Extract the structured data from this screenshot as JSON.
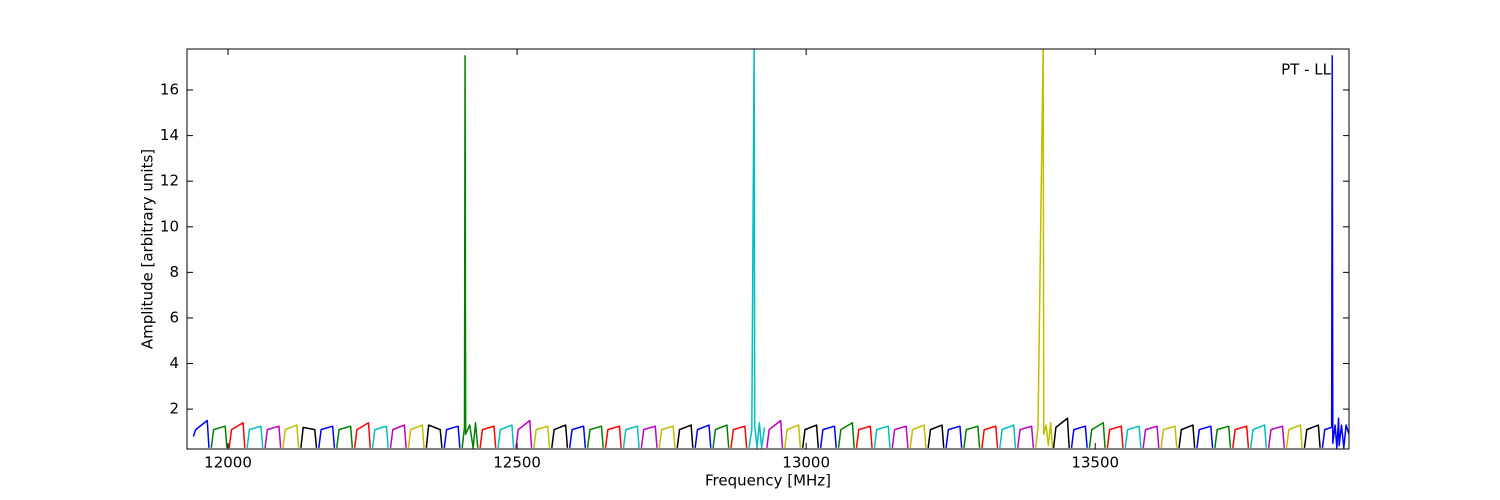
{
  "chart_data": {
    "type": "line",
    "xlabel": "Frequency [MHz]",
    "ylabel": "Amplitude [arbitrary units]",
    "annotation": "PT - LL",
    "xlim": [
      11929,
      13939
    ],
    "ylim": [
      0.25,
      17.8
    ],
    "xticks": [
      12000,
      12500,
      13000,
      13500
    ],
    "yticks": [
      2,
      4,
      6,
      8,
      10,
      12,
      14,
      16
    ],
    "series": [
      {
        "color": "#0000ff",
        "x": [
          11940,
          11944,
          11964,
          11967,
          null,
          12157,
          12161,
          12181,
          12184,
          null,
          12374,
          12378,
          12398,
          12401,
          null,
          12591,
          12595,
          12615,
          12618,
          null,
          12808,
          12812,
          12832,
          12835,
          null,
          13025,
          13029,
          13049,
          13052,
          null,
          13242,
          13246,
          13266,
          13269,
          null,
          13459,
          13463,
          13483,
          13486,
          null,
          13676,
          13680,
          13700,
          13703,
          null,
          13893,
          13897,
          13909,
          13910,
          13911,
          13915,
          13918,
          13921,
          13922,
          13926,
          13930,
          13934,
          13939
        ],
        "values": [
          0.8,
          1.1,
          1.5,
          0.3,
          null,
          0.3,
          1.1,
          1.25,
          0.3,
          null,
          0.3,
          1.1,
          1.25,
          0.3,
          null,
          0.3,
          1.1,
          1.25,
          0.3,
          null,
          0.3,
          1.1,
          1.3,
          0.3,
          null,
          0.3,
          1.1,
          1.25,
          0.3,
          null,
          0.3,
          1.1,
          1.25,
          0.3,
          null,
          0.3,
          1.1,
          1.25,
          0.3,
          null,
          0.3,
          1.1,
          1.25,
          0.3,
          null,
          0.3,
          1.1,
          1.2,
          17.5,
          0.5,
          1.3,
          0.3,
          1.6,
          0.4,
          1.3,
          0.3,
          1.3,
          0.9
        ]
      },
      {
        "color": "#008000",
        "x": [
          11971,
          11975,
          11995,
          11998,
          null,
          12188,
          12192,
          12212,
          12215,
          null,
          12405,
          12409,
          12410,
          12411,
          12418,
          12424,
          12428,
          12432,
          null,
          12622,
          12626,
          12646,
          12649,
          null,
          12839,
          12843,
          12863,
          12866,
          null,
          13056,
          13060,
          13080,
          13083,
          null,
          13273,
          13277,
          13297,
          13300,
          null,
          13490,
          13494,
          13514,
          13517,
          null,
          13707,
          13711,
          13731,
          13734
        ],
        "values": [
          0.3,
          1.1,
          1.25,
          0.3,
          null,
          0.3,
          1.1,
          1.25,
          0.3,
          null,
          0.3,
          1.2,
          17.5,
          0.9,
          1.3,
          0.3,
          1.4,
          0.3,
          null,
          0.3,
          1.1,
          1.25,
          0.3,
          null,
          0.3,
          1.1,
          1.3,
          0.3,
          null,
          0.3,
          1.1,
          1.4,
          0.3,
          null,
          0.3,
          1.1,
          1.25,
          0.3,
          null,
          0.3,
          1.1,
          1.4,
          0.3,
          null,
          0.3,
          1.1,
          1.25,
          0.3
        ]
      },
      {
        "color": "#ff0000",
        "x": [
          12002,
          12006,
          12026,
          12029,
          null,
          12219,
          12223,
          12243,
          12246,
          null,
          12436,
          12440,
          12460,
          12463,
          null,
          12653,
          12657,
          12677,
          12680,
          null,
          12870,
          12874,
          12894,
          12897,
          null,
          13087,
          13091,
          13111,
          13114,
          null,
          13304,
          13308,
          13328,
          13331,
          null,
          13521,
          13525,
          13545,
          13548,
          null,
          13738,
          13742,
          13762,
          13765
        ],
        "values": [
          0.3,
          1.1,
          1.4,
          0.3,
          null,
          0.3,
          1.1,
          1.4,
          0.3,
          null,
          0.3,
          1.1,
          1.25,
          0.3,
          null,
          0.3,
          1.1,
          1.25,
          0.3,
          null,
          0.3,
          1.1,
          1.25,
          0.3,
          null,
          0.3,
          1.1,
          1.25,
          0.3,
          null,
          0.3,
          1.1,
          1.25,
          0.3,
          null,
          0.3,
          1.1,
          1.25,
          0.3,
          null,
          0.3,
          1.1,
          1.25,
          0.3
        ]
      },
      {
        "color": "#00bfbf",
        "x": [
          12033,
          12037,
          12057,
          12060,
          null,
          12250,
          12254,
          12274,
          12277,
          null,
          12467,
          12471,
          12491,
          12494,
          null,
          12684,
          12688,
          12708,
          12711,
          null,
          12901,
          12906,
          12910,
          12911,
          12915,
          12919,
          12923,
          12928,
          null,
          13118,
          13122,
          13142,
          13145,
          null,
          13335,
          13339,
          13359,
          13362,
          null,
          13552,
          13556,
          13576,
          13579,
          null,
          13769,
          13773,
          13793,
          13796
        ],
        "values": [
          0.3,
          1.1,
          1.25,
          0.3,
          null,
          0.3,
          1.1,
          1.25,
          0.3,
          null,
          0.3,
          1.1,
          1.3,
          0.3,
          null,
          0.3,
          1.1,
          1.25,
          0.3,
          null,
          0.3,
          1.1,
          18,
          1.3,
          0.3,
          1.4,
          0.3,
          1.2,
          null,
          0.3,
          1.1,
          1.25,
          0.3,
          null,
          0.3,
          1.1,
          1.3,
          0.3,
          null,
          0.3,
          1.1,
          1.25,
          0.3,
          null,
          0.3,
          1.1,
          1.3,
          0.3
        ]
      },
      {
        "color": "#bf00bf",
        "x": [
          12064,
          12068,
          12088,
          12091,
          null,
          12281,
          12285,
          12305,
          12308,
          null,
          12498,
          12502,
          12522,
          12525,
          null,
          12715,
          12719,
          12739,
          12742,
          null,
          12932,
          12936,
          12956,
          12959,
          null,
          13149,
          13153,
          13173,
          13176,
          null,
          13366,
          13370,
          13390,
          13393,
          null,
          13583,
          13587,
          13607,
          13610,
          null,
          13800,
          13804,
          13824,
          13827
        ],
        "values": [
          0.3,
          1.1,
          1.25,
          0.3,
          null,
          0.3,
          1.1,
          1.3,
          0.3,
          null,
          0.3,
          1.1,
          1.5,
          0.3,
          null,
          0.3,
          1.1,
          1.25,
          0.3,
          null,
          0.3,
          1.1,
          1.5,
          0.3,
          null,
          0.3,
          1.1,
          1.25,
          0.3,
          null,
          0.3,
          1.1,
          1.25,
          0.3,
          null,
          0.3,
          1.1,
          1.25,
          0.3,
          null,
          0.3,
          1.1,
          1.25,
          0.3
        ]
      },
      {
        "color": "#bfbf00",
        "x": [
          12095,
          12099,
          12119,
          12122,
          null,
          12312,
          12316,
          12336,
          12339,
          null,
          12529,
          12533,
          12553,
          12556,
          null,
          12746,
          12750,
          12770,
          12773,
          null,
          12963,
          12967,
          12987,
          12990,
          null,
          13180,
          13184,
          13204,
          13207,
          null,
          13397,
          13401,
          13410,
          13411,
          13415,
          13419,
          13423,
          13426,
          null,
          13614,
          13618,
          13638,
          13641,
          null,
          13831,
          13835,
          13855,
          13858
        ],
        "values": [
          0.3,
          1.1,
          1.3,
          0.3,
          null,
          0.3,
          1.1,
          1.3,
          0.3,
          null,
          0.3,
          1.1,
          1.25,
          0.3,
          null,
          0.3,
          1.1,
          1.25,
          0.3,
          null,
          0.3,
          1.1,
          1.3,
          0.3,
          null,
          0.3,
          1.1,
          1.3,
          0.3,
          null,
          0.3,
          1.2,
          18,
          0.9,
          1.3,
          0.4,
          1.4,
          0.3,
          null,
          0.3,
          1.1,
          1.25,
          0.3,
          null,
          0.3,
          1.1,
          1.3,
          0.3
        ]
      },
      {
        "color": "#000000",
        "x": [
          12126,
          12130,
          12150,
          12153,
          null,
          12343,
          12347,
          12367,
          12370,
          null,
          12560,
          12564,
          12584,
          12587,
          null,
          12777,
          12781,
          12801,
          12804,
          null,
          12994,
          12998,
          13018,
          13021,
          null,
          13211,
          13215,
          13235,
          13238,
          null,
          13428,
          13432,
          13452,
          13455,
          null,
          13645,
          13649,
          13669,
          13672,
          null,
          13862,
          13866,
          13886,
          13889
        ],
        "values": [
          0.3,
          1.2,
          1.1,
          0.3,
          null,
          0.3,
          1.3,
          1.1,
          0.3,
          null,
          0.3,
          1.1,
          1.3,
          0.3,
          null,
          0.3,
          1.1,
          1.3,
          0.3,
          null,
          0.3,
          1.1,
          1.3,
          0.3,
          null,
          0.3,
          1.1,
          1.3,
          0.3,
          null,
          0.3,
          1.2,
          1.6,
          0.3,
          null,
          0.3,
          1.1,
          1.3,
          0.3,
          null,
          0.3,
          1.1,
          1.3,
          0.3
        ]
      }
    ]
  }
}
